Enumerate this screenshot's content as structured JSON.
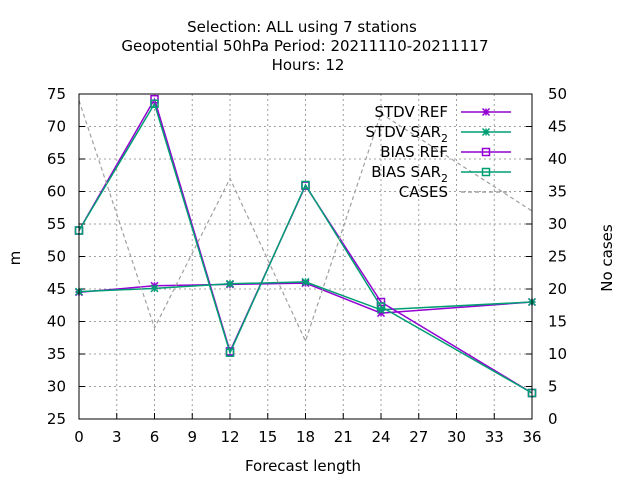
{
  "title": {
    "line1": "Selection: ALL using     7 stations",
    "line2": "Geopotential 50hPa   Period: 20211110-20211117",
    "line3": "Hours:  12"
  },
  "colors": {
    "purple": "#9400d3",
    "teal": "#009e73",
    "gray": "#a0a0a0"
  },
  "chart_data": {
    "type": "line",
    "title": "Selection: ALL using     7 stations / Geopotential 50hPa   Period: 20211110-20211117 / Hours:  12",
    "xlabel": "Forecast length",
    "ylabel": "m",
    "y2label": "No cases",
    "xlim": [
      0,
      36
    ],
    "ylim": [
      25,
      75
    ],
    "y2lim": [
      0,
      50
    ],
    "xticks": [
      "0",
      "3",
      "6",
      "9",
      "12",
      "15",
      "18",
      "21",
      "24",
      "27",
      "30",
      "33",
      "36"
    ],
    "yticks": [
      "25",
      "30",
      "35",
      "40",
      "45",
      "50",
      "55",
      "60",
      "65",
      "70",
      "75"
    ],
    "y2ticks": [
      "0",
      "5",
      "10",
      "15",
      "20",
      "25",
      "30",
      "35",
      "40",
      "45",
      "50"
    ],
    "grid": true,
    "legend_position": "top-right",
    "x": [
      0,
      6,
      12,
      18,
      24,
      36
    ],
    "series": [
      {
        "name": "STDV REF",
        "axis": "y1",
        "color": "#9400d3",
        "marker": "x-star",
        "dash": "solid",
        "values": [
          44.5,
          45.5,
          45.7,
          45.9,
          41.3,
          43.0
        ]
      },
      {
        "name": "STDV SAR",
        "name_sub": "2",
        "axis": "y1",
        "color": "#009e73",
        "marker": "x-star",
        "dash": "solid",
        "values": [
          44.6,
          45.1,
          45.8,
          46.1,
          41.8,
          43.0
        ]
      },
      {
        "name": "BIAS REF",
        "axis": "y1",
        "color": "#9400d3",
        "marker": "square",
        "dash": "solid",
        "values": [
          54.0,
          74.2,
          35.4,
          60.9,
          43.0,
          29.0
        ]
      },
      {
        "name": "BIAS SAR",
        "name_sub": "2",
        "axis": "y1",
        "color": "#009e73",
        "marker": "square",
        "dash": "solid",
        "values": [
          54.0,
          73.5,
          35.2,
          61.0,
          42.3,
          29.0
        ]
      },
      {
        "name": "CASES",
        "axis": "y2",
        "color": "#a0a0a0",
        "marker": "none",
        "dash": "dashed",
        "values": [
          49,
          14,
          37,
          12,
          47,
          32
        ]
      }
    ]
  }
}
